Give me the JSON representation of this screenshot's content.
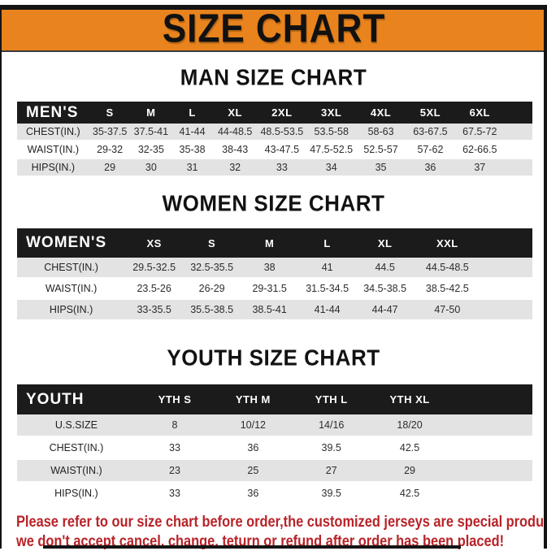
{
  "page": {
    "main_title": "SIZE CHART",
    "banner_color": "#E8831D",
    "header_row_color": "#1b1b1b",
    "stripe_color": "#E3E3E3",
    "disclaimer_color": "#B82328",
    "disclaimer_line1": "Please refer to our size chart before order,the customized jerseys are special products,",
    "disclaimer_line2": "we don't accept cancel, change, teturn or refund after order has been placed!"
  },
  "charts": [
    {
      "title": "MAN SIZE CHART",
      "header_label": "MEN'S",
      "columns": [
        "S",
        "M",
        "L",
        "XL",
        "2XL",
        "3XL",
        "4XL",
        "5XL",
        "6XL"
      ],
      "rows": [
        {
          "label": "CHEST(IN.)",
          "values": [
            "35-37.5",
            "37.5-41",
            "41-44",
            "44-48.5",
            "48.5-53.5",
            "53.5-58",
            "58-63",
            "63-67.5",
            "67.5-72"
          ]
        },
        {
          "label": "WAIST(IN.)",
          "values": [
            "29-32",
            "32-35",
            "35-38",
            "38-43",
            "43-47.5",
            "47.5-52.5",
            "52.5-57",
            "57-62",
            "62-66.5"
          ]
        },
        {
          "label": "HIPS(IN.)",
          "values": [
            "29",
            "30",
            "31",
            "32",
            "33",
            "34",
            "35",
            "36",
            "37"
          ]
        }
      ]
    },
    {
      "title": "WOMEN SIZE CHART",
      "header_label": "WOMEN'S",
      "columns": [
        "XS",
        "S",
        "M",
        "L",
        "XL",
        "XXL"
      ],
      "rows": [
        {
          "label": "CHEST(IN.)",
          "values": [
            "29.5-32.5",
            "32.5-35.5",
            "38",
            "41",
            "44.5",
            "44.5-48.5"
          ]
        },
        {
          "label": "WAIST(IN.)",
          "values": [
            "23.5-26",
            "26-29",
            "29-31.5",
            "31.5-34.5",
            "34.5-38.5",
            "38.5-42.5"
          ]
        },
        {
          "label": "HIPS(IN.)",
          "values": [
            "33-35.5",
            "35.5-38.5",
            "38.5-41",
            "41-44",
            "44-47",
            "47-50"
          ]
        }
      ]
    },
    {
      "title": "YOUTH SIZE CHART",
      "header_label": "YOUTH",
      "columns": [
        "YTH S",
        "YTH M",
        "YTH L",
        "YTH XL"
      ],
      "rows": [
        {
          "label": "U.S.SIZE",
          "values": [
            "8",
            "10/12",
            "14/16",
            "18/20"
          ]
        },
        {
          "label": "CHEST(IN.)",
          "values": [
            "33",
            "36",
            "39.5",
            "42.5"
          ]
        },
        {
          "label": "WAIST(IN.)",
          "values": [
            "23",
            "25",
            "27",
            "29"
          ]
        },
        {
          "label": "HIPS(IN.)",
          "values": [
            "33",
            "36",
            "39.5",
            "42.5"
          ]
        }
      ]
    }
  ]
}
